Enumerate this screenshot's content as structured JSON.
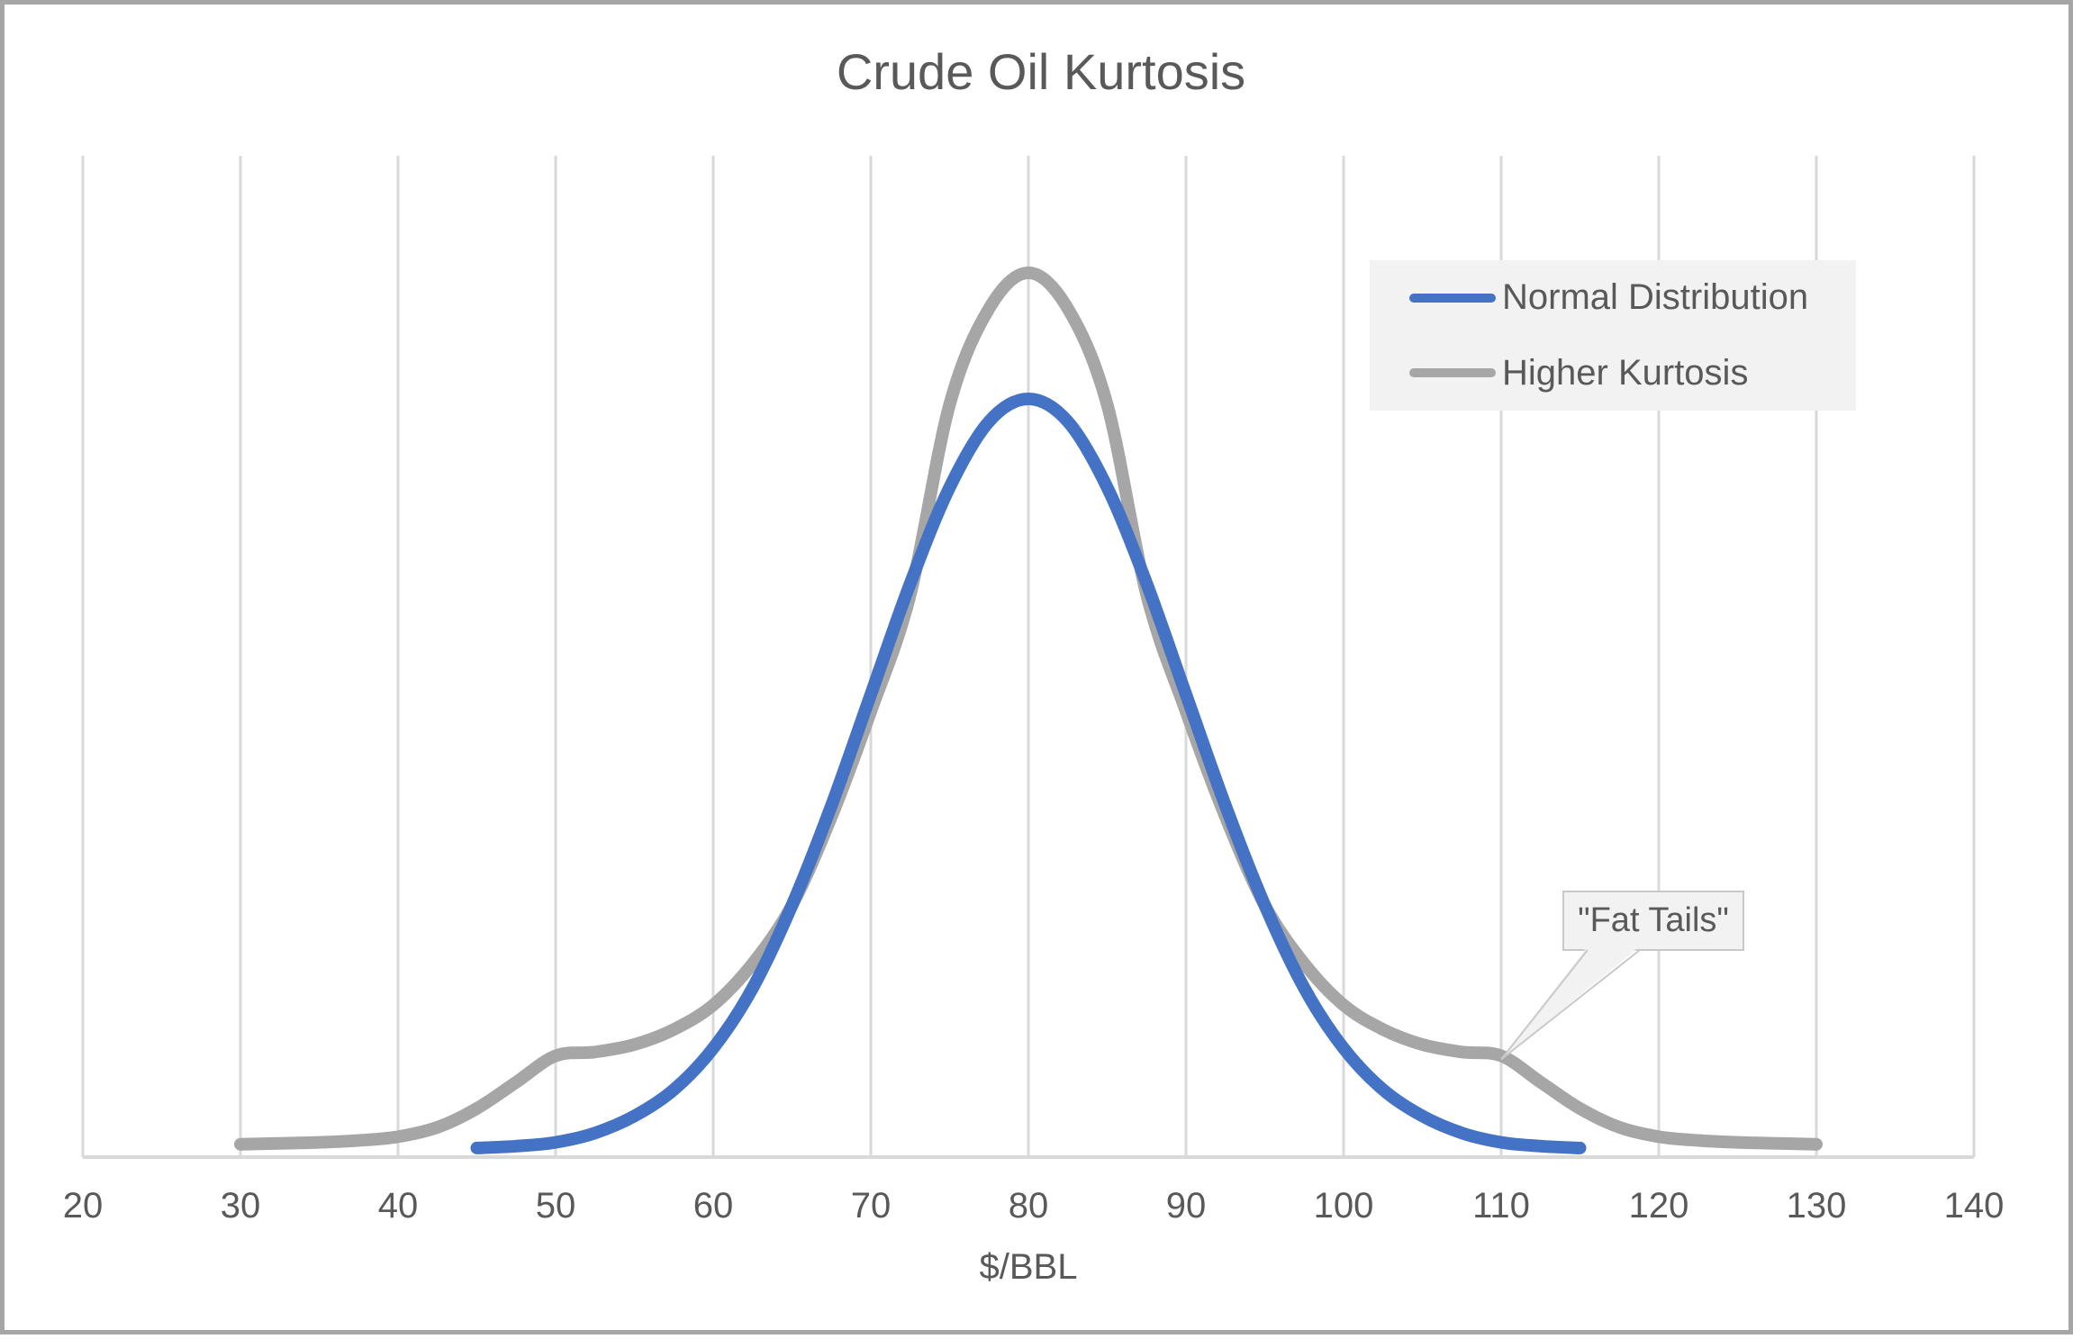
{
  "chart": {
    "title": "Crude Oil Kurtosis",
    "x_axis_title": "$/BBL",
    "annotation_text": "\"Fat Tails\"",
    "x_tick_labels": [
      "20",
      "30",
      "40",
      "50",
      "60",
      "70",
      "80",
      "90",
      "100",
      "110",
      "120",
      "130",
      "140"
    ],
    "legend_items": [
      {
        "label": "Normal Distribution",
        "color": "#4472C4"
      },
      {
        "label": "Higher Kurtosis",
        "color": "#A6A6A6"
      }
    ],
    "colors": {
      "normal_series": "#4472C4",
      "kurtosis_series": "#A6A6A6",
      "gridline": "#D9D9D9",
      "axis_line": "#D9D9D9",
      "text": "#595959",
      "legend_background": "#F2F2F2",
      "callout_background": "#F2F2F2",
      "callout_border": "#C9C9C9",
      "frame_border": "#A6A6A6"
    }
  },
  "chart_data": {
    "type": "line",
    "title": "Crude Oil Kurtosis",
    "xlabel": "$/BBL",
    "ylabel": "",
    "xlim": [
      20,
      140
    ],
    "ylim": [
      0,
      0.053
    ],
    "x_tick_interval": 10,
    "grid": "vertical-only",
    "y_axis_visible": false,
    "legend_position": "upper-right",
    "series": [
      {
        "name": "Normal Distribution",
        "color": "#4472C4",
        "x": [
          45,
          47.5,
          50,
          52.5,
          55,
          57.5,
          60,
          62.5,
          65,
          67.5,
          70,
          72.5,
          75,
          77.5,
          80,
          82.5,
          85,
          87.5,
          90,
          92.5,
          95,
          97.5,
          100,
          102.5,
          105,
          107.5,
          110,
          112.5,
          115
        ],
        "values": [
          0.0001,
          0.0002,
          0.0004,
          0.0009,
          0.0018,
          0.0032,
          0.0054,
          0.0086,
          0.013,
          0.0183,
          0.0242,
          0.0301,
          0.0352,
          0.0387,
          0.0399,
          0.0387,
          0.0352,
          0.0301,
          0.0242,
          0.0183,
          0.013,
          0.0086,
          0.0054,
          0.0032,
          0.0018,
          0.0009,
          0.0004,
          0.0002,
          0.0001
        ]
      },
      {
        "name": "Higher Kurtosis",
        "color": "#A6A6A6",
        "x": [
          30,
          32.5,
          35,
          37.5,
          40,
          42.5,
          45,
          47.5,
          50,
          52.5,
          55,
          57.5,
          60,
          62.5,
          65,
          67.5,
          70,
          72.5,
          75,
          77.5,
          80,
          82.5,
          85,
          87.5,
          90,
          92.5,
          95,
          97.5,
          100,
          102.5,
          105,
          107.5,
          110,
          112.5,
          115,
          117.5,
          120,
          122.5,
          125,
          127.5,
          130
        ],
        "values": [
          0.0003,
          0.00035,
          0.0004,
          0.0005,
          0.0007,
          0.0012,
          0.0022,
          0.0036,
          0.005,
          0.0052,
          0.0056,
          0.0064,
          0.0077,
          0.0099,
          0.013,
          0.0177,
          0.0233,
          0.0295,
          0.0396,
          0.0447,
          0.0466,
          0.0447,
          0.0396,
          0.0295,
          0.0233,
          0.0177,
          0.013,
          0.0099,
          0.0077,
          0.0064,
          0.0056,
          0.0052,
          0.005,
          0.0036,
          0.0022,
          0.0012,
          0.0007,
          0.0005,
          0.0004,
          0.00035,
          0.0003
        ]
      }
    ],
    "annotations": [
      {
        "text": "\"Fat Tails\"",
        "x": 110,
        "y": 0.005
      }
    ]
  }
}
